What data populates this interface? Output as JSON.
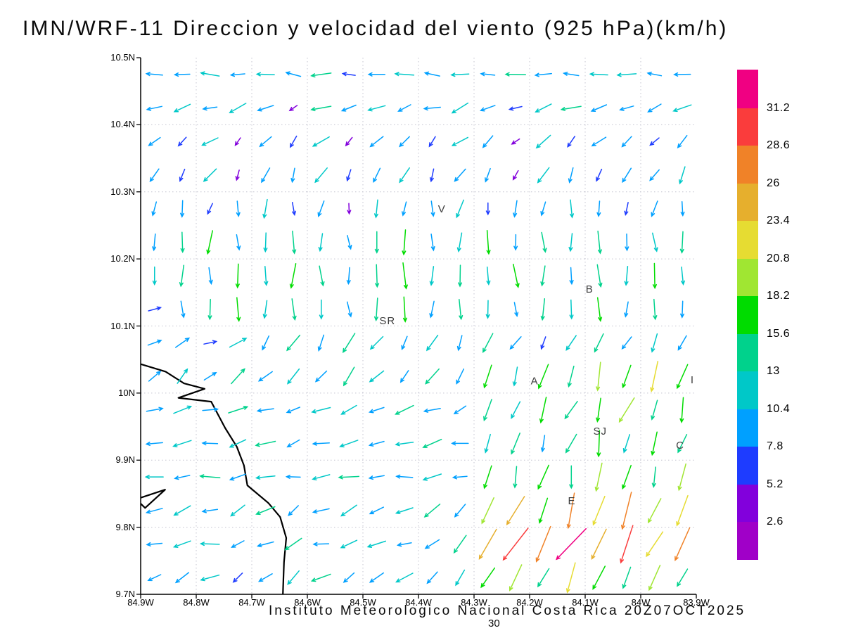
{
  "title": "IMN/WRF-11 Direccion y velocidad del viento (925 hPa)(km/h)",
  "footer": {
    "credit": "Instituto Meteorologico Nacional Costa Rica 20Z07OCT2025",
    "forecast_hour": "30"
  },
  "chart_data": {
    "type": "vector_field",
    "title": "IMN/WRF-11 Direccion y velocidad del viento (925 hPa)(km/h)",
    "units": "km/h",
    "level": "925 hPa",
    "x_axis": {
      "labels": [
        "84.9W",
        "84.8W",
        "84.7W",
        "84.6W",
        "84.5W",
        "84.4W",
        "84.3W",
        "84.2W",
        "84.1W",
        "84W",
        "83.9W"
      ],
      "values": [
        84.9,
        84.8,
        84.7,
        84.6,
        84.5,
        84.4,
        84.3,
        84.2,
        84.1,
        84.0,
        83.9
      ],
      "range": [
        84.9,
        83.9
      ]
    },
    "y_axis": {
      "labels": [
        "10.5N",
        "10.4N",
        "10.3N",
        "10.2N",
        "10.1N",
        "10N",
        "9.9N",
        "9.8N",
        "9.7N"
      ],
      "values": [
        10.5,
        10.4,
        10.3,
        10.2,
        10.1,
        10.0,
        9.9,
        9.8,
        9.7
      ],
      "range": [
        10.5,
        9.7
      ]
    },
    "grid_dotted": true,
    "colorbar": {
      "unit": "km/h",
      "levels": [
        2.6,
        5.2,
        7.8,
        10.4,
        13,
        15.6,
        18.2,
        20.8,
        23.4,
        26,
        28.6,
        31.2
      ],
      "colors": [
        "#A000C8",
        "#8200DC",
        "#1E3CFF",
        "#00A0FF",
        "#00C8C8",
        "#00D28C",
        "#00DC00",
        "#A0E632",
        "#E6DC32",
        "#E6AF2D",
        "#F08228",
        "#FA3C3C",
        "#F00082"
      ]
    },
    "stations": [
      {
        "label": "V",
        "fx": 0.542,
        "fy": 0.282
      },
      {
        "label": "B",
        "fx": 0.808,
        "fy": 0.431
      },
      {
        "label": "SR",
        "fx": 0.444,
        "fy": 0.49
      },
      {
        "label": "A",
        "fx": 0.709,
        "fy": 0.602
      },
      {
        "label": "I",
        "fx": 0.993,
        "fy": 0.6
      },
      {
        "label": "SJ",
        "fx": 0.827,
        "fy": 0.696
      },
      {
        "label": "C",
        "fx": 0.971,
        "fy": 0.722
      },
      {
        "label": "E",
        "fx": 0.776,
        "fy": 0.826
      }
    ],
    "wind_grid": {
      "cols": 20,
      "rows": 16,
      "fx0": 0.025,
      "dfx": 0.05,
      "fy0": 0.03125,
      "dfy": 0.0625,
      "encoding": "direction_deg(0=E,90=N),speed_kmh",
      "rows_data": [
        "175,10 182,9 170,12 185,8 178,11 165,9 188,13 172,7 180,10 176,12 168,9 183,11 174,8 179,13 186,10 171,9 177,11 184,12 169,8 181,10",
        "192,9 205,11 188,8 210,12 198,10 215,4 190,13 202,9 195,11 208,8 185,10 212,12 200,9 193,7 207,11 189,13 203,10 196,8 211,9 199,12",
        "215,8 228,6 205,11 235,4 220,9 240,7 210,12 232,5 218,10 225,8 238,6 208,11 230,9 214,4 222,12 236,7 212,10 227,8 219,6 233,9",
        "235,9 248,7 225,11 255,5 240,10 260,8 230,12 252,6 244,9 236,11 258,7 228,10 250,8 241,5 233,12 256,9 246,7 238,10 229,8 253,11",
        "255,8 268,10 245,6 275,9 260,12 280,7 250,10 272,5 264,11 256,8 278,9 248,12 270,6 261,10 253,8 276,11 266,9 258,7 249,10 273,8",
        "265,10 272,13 258,16 280,9 268,12 275,15 262,11 284,8 270,14 266,17 278,10 260,12 274,16 269,9 281,13 264,11 276,15 271,10 283,12 267,14",
        "270,11 262,14 278,10 268,16 274,12 259,17 281,13 266,10 272,15 277,18 263,12 269,14 275,11 282,16 261,13 273,10 279,15 265,12 271,17 276,11",
        "15,7 280,10 268,13 275,16 262,11 278,14 270,12 284,9 266,15 273,17 258,10 276,13 269,11 281,8 264,14 272,12 277,16 260,9 274,13 268,10",
        "20,8 35,10 12,7 28,12 245,9 230,13 252,10 238,15 225,11 248,8 234,12 256,9 242,14 228,10 250,7 236,11 244,13 232,9 254,12 240,10",
        "40,9 55,11 32,8 48,13 215,10 232,12 224,9 240,14 218,11 236,8 228,13 244,10 252,16 260,12 248,18 256,14 264,20 250,16 258,22 246,18",
        "10,10 22,12 5,9 18,13 188,10 202,8 194,12 210,11 198,9 206,13 190,10 214,8 250,15 242,12 258,18 234,14 262,16 238,20 254,13 266,17",
        "185,10 198,12 178,9 205,11 192,13 210,8 183,10 200,12 195,9 188,11 204,13 180,10 255,12 248,15 262,10 240,14 268,18 252,12 258,16 244,13",
        "180,11 192,9 175,13 200,10 186,12 178,8 195,11 183,13 190,9 176,10 198,12 185,8 252,16 265,14 246,18 270,15 258,20 250,17 264,13 255,19",
        "195,10 210,12 188,9 218,11 202,13 225,8 192,10 215,12 206,9 198,11 220,13 230,10 245,20 238,24 252,18 260,26 248,22 256,28 242,19 250,23",
        "185,9 200,11 178,12 208,8 195,10 215,13 182,9 205,11 198,12 190,8 212,10 235,14 240,25 232,30 248,28 226,32 244,24 252,29 236,21 246,26",
        "205,8 218,10 195,12 225,7 210,9 230,11 200,13 222,8 215,10 208,12 228,9 240,11 235,16 245,20 238,14 255,22 242,18 250,15 246,19 239,13"
      ]
    },
    "coastline": [
      [
        [
          0.0,
          0.571
        ],
        [
          0.045,
          0.585
        ],
        [
          0.078,
          0.607
        ],
        [
          0.115,
          0.617
        ],
        [
          0.068,
          0.634
        ],
        [
          0.127,
          0.641
        ],
        [
          0.152,
          0.69
        ],
        [
          0.173,
          0.725
        ],
        [
          0.186,
          0.76
        ],
        [
          0.192,
          0.797
        ],
        [
          0.23,
          0.83
        ],
        [
          0.251,
          0.856
        ],
        [
          0.262,
          0.895
        ],
        [
          0.258,
          0.94
        ],
        [
          0.256,
          1.0
        ]
      ],
      [
        [
          0.0,
          0.82
        ],
        [
          0.044,
          0.805
        ],
        [
          0.008,
          0.839
        ],
        [
          0.0,
          0.831
        ]
      ]
    ]
  }
}
